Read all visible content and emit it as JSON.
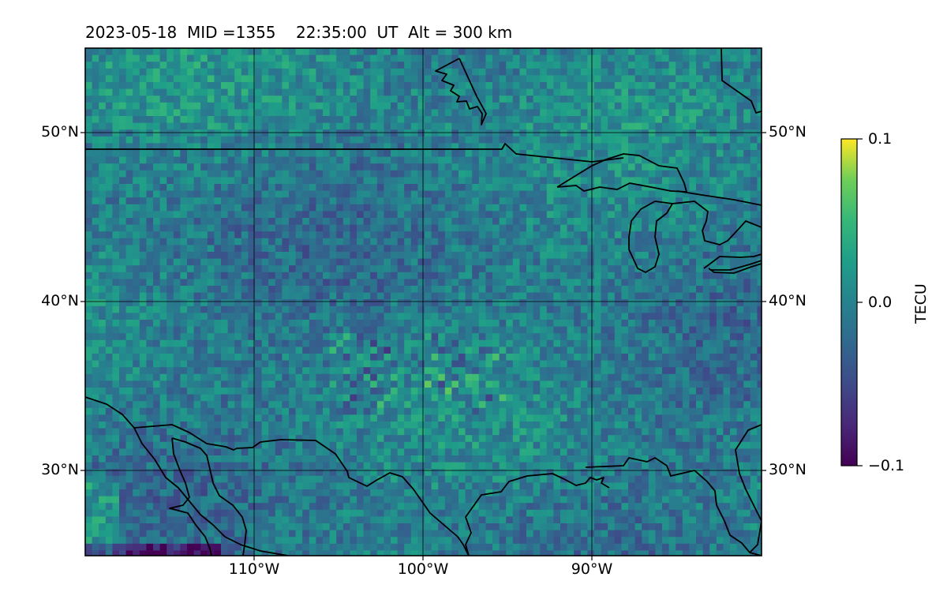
{
  "header": {
    "date": "2023-05-18",
    "mid": "MID =1355",
    "time": "22:35:00  UT",
    "alt": "Alt = 300 km"
  },
  "map": {
    "lat_labels": [
      "50°N",
      "40°N",
      "30°N"
    ],
    "lon_labels": [
      "110°W",
      "100°W",
      "90°W"
    ],
    "extent": {
      "lon_min": -120,
      "lon_max": -80,
      "lat_min": 25,
      "lat_max": 55
    },
    "coastline_color": "#000000",
    "gridline_color": "#000000"
  },
  "colorbar": {
    "label": "TECU",
    "ticks": [
      "0.1",
      "0.0",
      "−0.1"
    ],
    "min": -0.1,
    "max": 0.1,
    "colormap": "viridis"
  }
}
